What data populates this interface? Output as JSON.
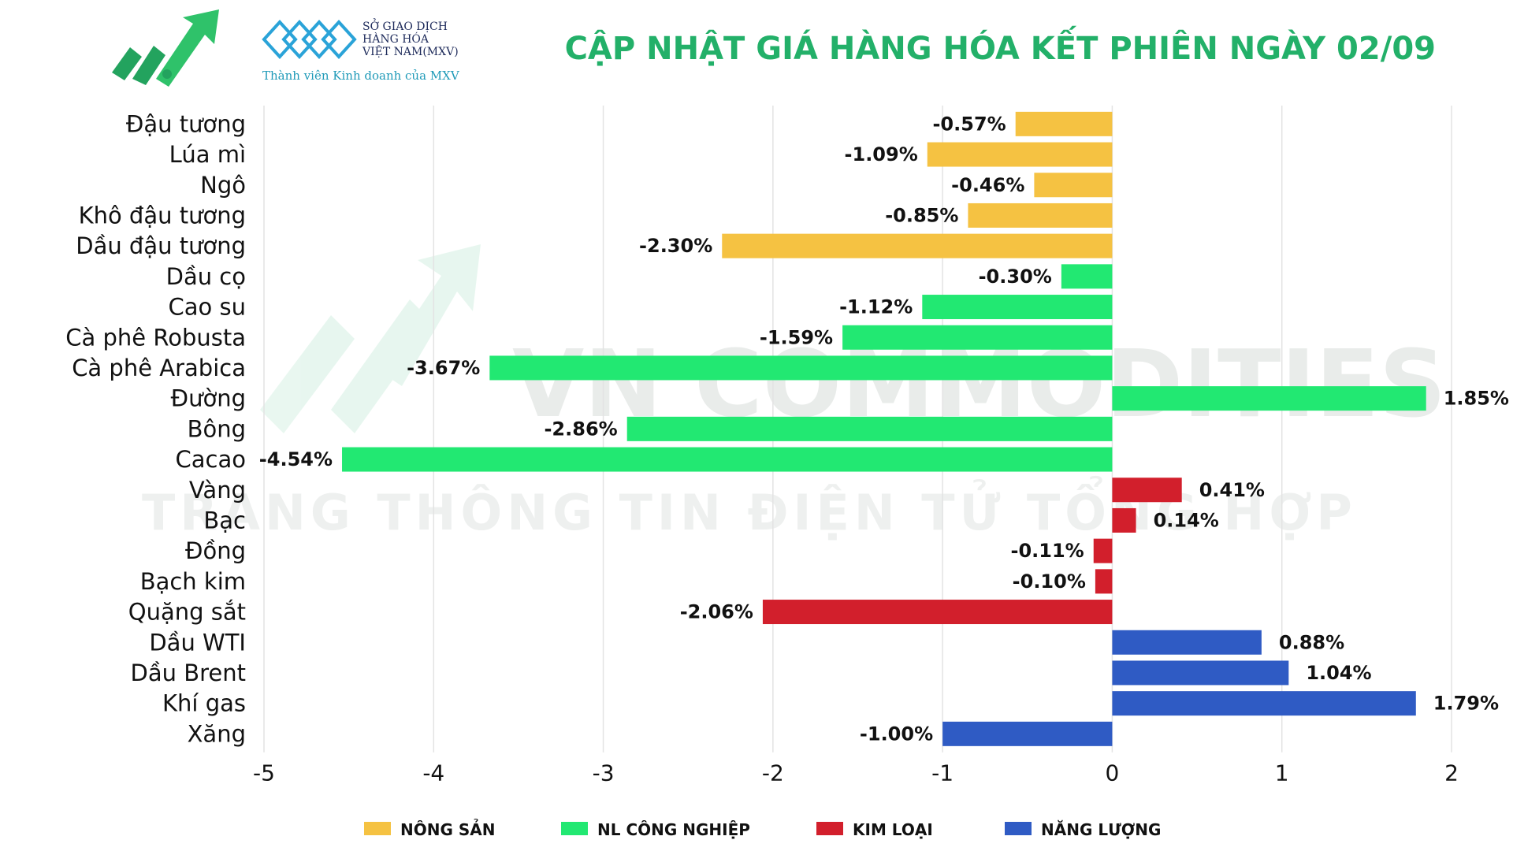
{
  "header": {
    "title": "CẬP NHẬT GIÁ HÀNG HÓA KẾT PHIÊN NGÀY 02/09",
    "mxv_line1": "SỞ GIAO DỊCH",
    "mxv_line2": "HÀNG HÓA",
    "mxv_line3": "VIỆT NAM(MXV)",
    "mxv_tagline": "Thành viên Kinh doanh của MXV"
  },
  "watermark": {
    "line1": "VN COMMODITIES",
    "line2": "TRANG THÔNG TIN ĐIỆN TỬ TỔNG HỢP"
  },
  "colors": {
    "nong_san": "#f5c242",
    "nl_cong_nghiep": "#22e872",
    "kim_loai": "#d21f2c",
    "nang_luong": "#2f5bc4",
    "title": "#23b069"
  },
  "chart_data": {
    "type": "bar",
    "orientation": "horizontal",
    "title": "CẬP NHẬT GIÁ HÀNG HÓA KẾT PHIÊN NGÀY 02/09",
    "xlim": [
      -5,
      2
    ],
    "xticks": [
      -5,
      -4,
      -3,
      -2,
      -1,
      0,
      1,
      2
    ],
    "grid": "vertical",
    "legend_position": "bottom",
    "groups": [
      {
        "key": "nong_san",
        "name": "NÔNG SẢN"
      },
      {
        "key": "nl_cong_nghiep",
        "name": "NL CÔNG NGHIỆP"
      },
      {
        "key": "kim_loai",
        "name": "KIM LOẠI"
      },
      {
        "key": "nang_luong",
        "name": "NĂNG LƯỢNG"
      }
    ],
    "bars": [
      {
        "category": "Đậu tương",
        "value": -0.57,
        "label": "-0.57%",
        "group": "nong_san"
      },
      {
        "category": "Lúa mì",
        "value": -1.09,
        "label": "-1.09%",
        "group": "nong_san"
      },
      {
        "category": "Ngô",
        "value": -0.46,
        "label": "-0.46%",
        "group": "nong_san"
      },
      {
        "category": "Khô đậu tương",
        "value": -0.85,
        "label": "-0.85%",
        "group": "nong_san"
      },
      {
        "category": "Dầu đậu tương",
        "value": -2.3,
        "label": "-2.30%",
        "group": "nong_san"
      },
      {
        "category": "Dầu cọ",
        "value": -0.3,
        "label": "-0.30%",
        "group": "nl_cong_nghiep"
      },
      {
        "category": "Cao su",
        "value": -1.12,
        "label": "-1.12%",
        "group": "nl_cong_nghiep"
      },
      {
        "category": "Cà phê Robusta",
        "value": -1.59,
        "label": "-1.59%",
        "group": "nl_cong_nghiep"
      },
      {
        "category": "Cà phê Arabica",
        "value": -3.67,
        "label": "-3.67%",
        "group": "nl_cong_nghiep"
      },
      {
        "category": "Đường",
        "value": 1.85,
        "label": "1.85%",
        "group": "nl_cong_nghiep"
      },
      {
        "category": "Bông",
        "value": -2.86,
        "label": "-2.86%",
        "group": "nl_cong_nghiep"
      },
      {
        "category": "Cacao",
        "value": -4.54,
        "label": "-4.54%",
        "group": "nl_cong_nghiep"
      },
      {
        "category": "Vàng",
        "value": 0.41,
        "label": "0.41%",
        "group": "kim_loai"
      },
      {
        "category": "Bạc",
        "value": 0.14,
        "label": "0.14%",
        "group": "kim_loai"
      },
      {
        "category": "Đồng",
        "value": -0.11,
        "label": "-0.11%",
        "group": "kim_loai"
      },
      {
        "category": "Bạch kim",
        "value": -0.1,
        "label": "-0.10%",
        "group": "kim_loai"
      },
      {
        "category": "Quặng sắt",
        "value": -2.06,
        "label": "-2.06%",
        "group": "kim_loai"
      },
      {
        "category": "Dầu WTI",
        "value": 0.88,
        "label": "0.88%",
        "group": "nang_luong"
      },
      {
        "category": "Dầu Brent",
        "value": 1.04,
        "label": "1.04%",
        "group": "nang_luong"
      },
      {
        "category": "Khí gas",
        "value": 1.79,
        "label": "1.79%",
        "group": "nang_luong"
      },
      {
        "category": "Xăng",
        "value": -1.0,
        "label": "-1.00%",
        "group": "nang_luong"
      }
    ]
  }
}
